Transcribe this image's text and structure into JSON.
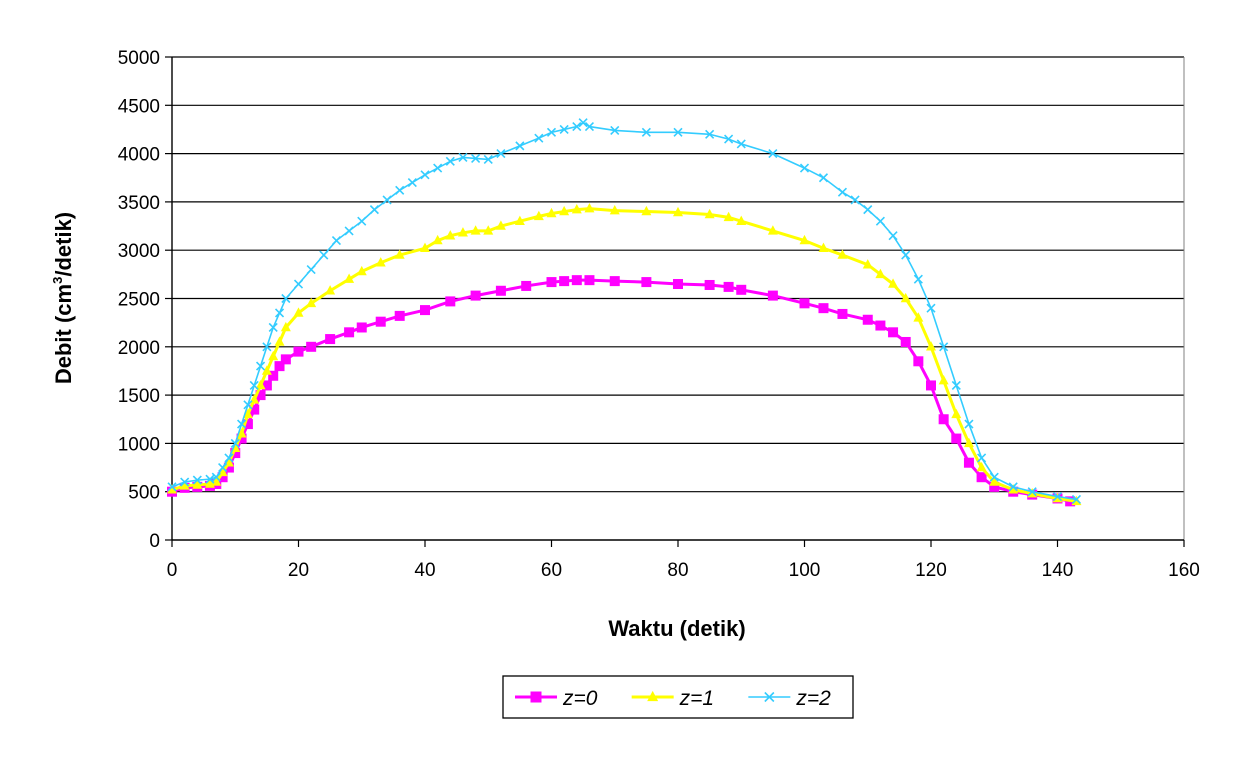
{
  "chart_data": {
    "type": "line",
    "xlabel": "Waktu (detik)",
    "ylabel_main": "Debit (cm",
    "ylabel_sup": "3",
    "ylabel_tail": "/detik)",
    "xlim": [
      0,
      160
    ],
    "ylim": [
      0,
      5000
    ],
    "x_ticks": [
      0,
      20,
      40,
      60,
      80,
      100,
      120,
      140,
      160
    ],
    "y_ticks": [
      0,
      500,
      1000,
      1500,
      2000,
      2500,
      3000,
      3500,
      4000,
      4500,
      5000
    ],
    "grid": "horizontal major gridlines",
    "legend_position": "bottom",
    "series": [
      {
        "name": "z=0",
        "color": "#ff00ff",
        "marker": "square",
        "x": [
          0,
          2,
          4,
          6,
          7,
          8,
          9,
          10,
          11,
          12,
          13,
          14,
          15,
          16,
          17,
          18,
          20,
          22,
          25,
          28,
          30,
          33,
          36,
          40,
          44,
          48,
          52,
          56,
          60,
          62,
          64,
          66,
          70,
          75,
          80,
          85,
          88,
          90,
          95,
          100,
          103,
          106,
          110,
          112,
          114,
          116,
          118,
          120,
          122,
          124,
          126,
          128,
          130,
          133,
          136,
          140,
          142
        ],
        "y": [
          500,
          540,
          550,
          560,
          580,
          650,
          750,
          900,
          1050,
          1200,
          1350,
          1500,
          1600,
          1700,
          1800,
          1870,
          1950,
          2000,
          2080,
          2150,
          2200,
          2260,
          2320,
          2380,
          2470,
          2530,
          2580,
          2630,
          2670,
          2680,
          2690,
          2690,
          2680,
          2670,
          2650,
          2640,
          2620,
          2590,
          2530,
          2450,
          2400,
          2340,
          2280,
          2220,
          2150,
          2050,
          1850,
          1600,
          1250,
          1050,
          800,
          650,
          550,
          500,
          470,
          430,
          400
        ]
      },
      {
        "name": "z=1",
        "color": "#ffff00",
        "marker": "triangle",
        "x": [
          0,
          2,
          4,
          6,
          7,
          8,
          9,
          10,
          11,
          12,
          13,
          14,
          15,
          16,
          17,
          18,
          20,
          22,
          25,
          28,
          30,
          33,
          36,
          40,
          42,
          44,
          46,
          48,
          50,
          52,
          55,
          58,
          60,
          62,
          64,
          66,
          70,
          75,
          80,
          85,
          88,
          90,
          95,
          100,
          103,
          106,
          110,
          112,
          114,
          116,
          118,
          120,
          122,
          124,
          126,
          128,
          130,
          133,
          136,
          140,
          143
        ],
        "y": [
          520,
          560,
          570,
          580,
          600,
          700,
          800,
          950,
          1100,
          1300,
          1450,
          1600,
          1750,
          1900,
          2050,
          2200,
          2350,
          2450,
          2580,
          2700,
          2780,
          2870,
          2950,
          3020,
          3100,
          3150,
          3180,
          3200,
          3200,
          3250,
          3300,
          3350,
          3380,
          3400,
          3420,
          3430,
          3410,
          3400,
          3390,
          3370,
          3340,
          3300,
          3200,
          3100,
          3020,
          2950,
          2850,
          2750,
          2650,
          2500,
          2300,
          2000,
          1650,
          1300,
          1000,
          750,
          600,
          520,
          480,
          430,
          400
        ]
      },
      {
        "name": "z=2",
        "color": "#33ccff",
        "marker": "x",
        "x": [
          0,
          2,
          4,
          6,
          7,
          8,
          9,
          10,
          11,
          12,
          13,
          14,
          15,
          16,
          17,
          18,
          20,
          22,
          24,
          26,
          28,
          30,
          32,
          34,
          36,
          38,
          40,
          42,
          44,
          46,
          48,
          50,
          52,
          55,
          58,
          60,
          62,
          64,
          65,
          66,
          70,
          75,
          80,
          85,
          88,
          90,
          95,
          100,
          103,
          106,
          108,
          110,
          112,
          114,
          116,
          118,
          120,
          122,
          124,
          126,
          128,
          130,
          133,
          136,
          140,
          143
        ],
        "y": [
          550,
          600,
          620,
          630,
          650,
          750,
          850,
          1000,
          1200,
          1400,
          1600,
          1800,
          2000,
          2200,
          2350,
          2500,
          2650,
          2800,
          2950,
          3100,
          3200,
          3300,
          3420,
          3520,
          3620,
          3700,
          3780,
          3850,
          3920,
          3960,
          3950,
          3940,
          4000,
          4080,
          4160,
          4220,
          4250,
          4280,
          4320,
          4280,
          4240,
          4220,
          4220,
          4200,
          4150,
          4100,
          4000,
          3850,
          3750,
          3600,
          3520,
          3420,
          3300,
          3150,
          2950,
          2700,
          2400,
          2000,
          1600,
          1200,
          850,
          650,
          550,
          500,
          450,
          420
        ]
      }
    ]
  }
}
